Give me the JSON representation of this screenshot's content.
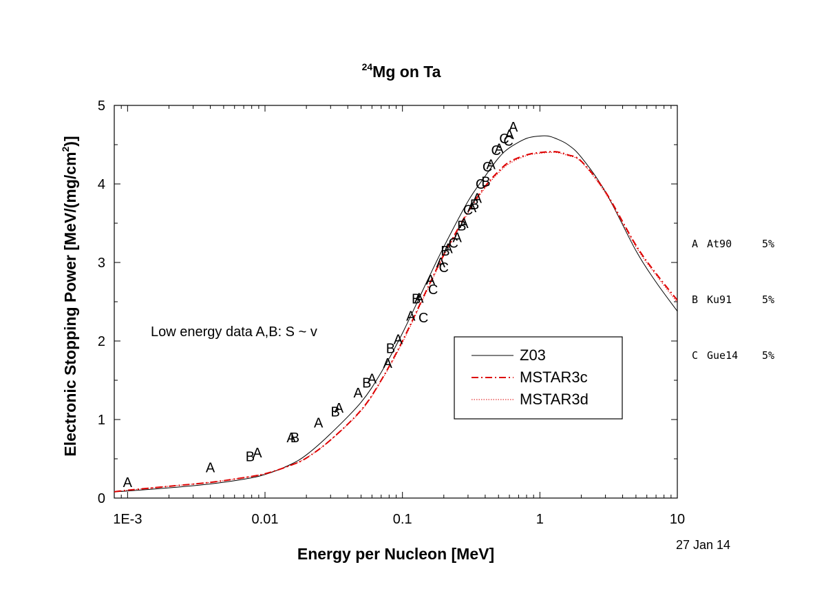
{
  "chart_data": {
    "type": "scatter",
    "title": "Mg on Ta",
    "title_superscript": "24",
    "xlabel": "Energy per Nucleon [MeV]",
    "ylabel": "Electronic Stopping Power [MeV/(mg/cm",
    "ylabel_superscript": "2",
    "ylabel_suffix": ")]",
    "x_scale": "log",
    "xlim": [
      0.0008,
      10
    ],
    "ylim": [
      0,
      5
    ],
    "x_ticks": [
      0.001,
      0.01,
      0.1,
      1,
      10
    ],
    "x_tick_labels": [
      "1E-3",
      "0.01",
      "0.1",
      "1",
      "10"
    ],
    "y_ticks": [
      0,
      1,
      2,
      3,
      4,
      5
    ],
    "y_tick_labels": [
      "0",
      "1",
      "2",
      "3",
      "4",
      "5"
    ],
    "grid": false,
    "annotation": "Low energy data A,B: S ~ v",
    "date_label": "27 Jan 14",
    "legend": {
      "placement": "lower-right",
      "entries": [
        {
          "label": "Z03",
          "color": "#000000",
          "style": "solid"
        },
        {
          "label": "MSTAR3c",
          "color": "#dd0000",
          "style": "dashdot"
        },
        {
          "label": "MSTAR3d",
          "color": "#dd0000",
          "style": "dotted"
        }
      ]
    },
    "data_legend": [
      {
        "code": "A",
        "source": "At90",
        "error": "5%"
      },
      {
        "code": "B",
        "source": "Ku91",
        "error": "5%"
      },
      {
        "code": "C",
        "source": "Gue14",
        "error": "5%"
      }
    ],
    "series": [
      {
        "name": "Z03",
        "color": "#000000",
        "style": "solid",
        "x": [
          0.0008,
          0.001,
          0.002,
          0.004,
          0.007,
          0.01,
          0.015,
          0.02,
          0.03,
          0.05,
          0.07,
          0.1,
          0.15,
          0.2,
          0.3,
          0.4,
          0.5,
          0.6,
          0.8,
          1.0,
          1.15,
          1.3,
          1.6,
          2,
          3,
          5,
          7,
          10
        ],
        "y": [
          0.08,
          0.09,
          0.13,
          0.18,
          0.24,
          0.3,
          0.42,
          0.55,
          0.82,
          1.22,
          1.6,
          2.1,
          2.75,
          3.2,
          3.78,
          4.1,
          4.33,
          4.46,
          4.58,
          4.61,
          4.61,
          4.58,
          4.5,
          4.34,
          3.9,
          3.15,
          2.75,
          2.38
        ]
      },
      {
        "name": "MSTAR3c",
        "color": "#dd0000",
        "style": "dashdot",
        "x": [
          0.0008,
          0.001,
          0.002,
          0.004,
          0.007,
          0.01,
          0.015,
          0.02,
          0.03,
          0.05,
          0.07,
          0.1,
          0.15,
          0.2,
          0.3,
          0.4,
          0.5,
          0.6,
          0.8,
          1.0,
          1.3,
          1.6,
          2,
          3,
          5,
          7,
          10
        ],
        "y": [
          0.08,
          0.1,
          0.15,
          0.2,
          0.26,
          0.31,
          0.41,
          0.51,
          0.74,
          1.12,
          1.5,
          2.0,
          2.65,
          3.1,
          3.65,
          3.97,
          4.16,
          4.28,
          4.37,
          4.4,
          4.41,
          4.37,
          4.29,
          3.9,
          3.22,
          2.86,
          2.52
        ]
      },
      {
        "name": "MSTAR3d",
        "color": "#dd0000",
        "style": "dotted",
        "x": [
          0.0008,
          0.001,
          0.002,
          0.004,
          0.007,
          0.01,
          0.015,
          0.02,
          0.03,
          0.05,
          0.07,
          0.1,
          0.15,
          0.2,
          0.3,
          0.4,
          0.5,
          0.6,
          0.8,
          1.0,
          1.3,
          1.6,
          2,
          3,
          5,
          7,
          10
        ],
        "y": [
          0.08,
          0.1,
          0.15,
          0.2,
          0.26,
          0.31,
          0.41,
          0.51,
          0.74,
          1.11,
          1.49,
          1.98,
          2.63,
          3.08,
          3.63,
          3.95,
          4.14,
          4.26,
          4.36,
          4.39,
          4.4,
          4.36,
          4.28,
          3.88,
          3.2,
          2.84,
          2.49
        ]
      }
    ],
    "points": [
      {
        "label": "A",
        "x": 0.001,
        "y": 0.2
      },
      {
        "label": "A",
        "x": 0.004,
        "y": 0.39
      },
      {
        "label": "B",
        "x": 0.0078,
        "y": 0.53
      },
      {
        "label": "A",
        "x": 0.0088,
        "y": 0.58
      },
      {
        "label": "A",
        "x": 0.0155,
        "y": 0.77
      },
      {
        "label": "B",
        "x": 0.0165,
        "y": 0.77
      },
      {
        "label": "A",
        "x": 0.0245,
        "y": 0.96
      },
      {
        "label": "B",
        "x": 0.0325,
        "y": 1.1
      },
      {
        "label": "A",
        "x": 0.0345,
        "y": 1.15
      },
      {
        "label": "A",
        "x": 0.0475,
        "y": 1.34
      },
      {
        "label": "B",
        "x": 0.055,
        "y": 1.47
      },
      {
        "label": "A",
        "x": 0.06,
        "y": 1.52
      },
      {
        "label": "A",
        "x": 0.078,
        "y": 1.72
      },
      {
        "label": "B",
        "x": 0.082,
        "y": 1.91
      },
      {
        "label": "A",
        "x": 0.093,
        "y": 2.02
      },
      {
        "label": "A",
        "x": 0.115,
        "y": 2.32
      },
      {
        "label": "B",
        "x": 0.126,
        "y": 2.54
      },
      {
        "label": "A",
        "x": 0.132,
        "y": 2.55
      },
      {
        "label": "C",
        "x": 0.142,
        "y": 2.3
      },
      {
        "label": "A",
        "x": 0.16,
        "y": 2.78
      },
      {
        "label": "C",
        "x": 0.167,
        "y": 2.66
      },
      {
        "label": "A",
        "x": 0.19,
        "y": 3.0
      },
      {
        "label": "C",
        "x": 0.2,
        "y": 2.94
      },
      {
        "label": "B",
        "x": 0.205,
        "y": 3.15
      },
      {
        "label": "A",
        "x": 0.215,
        "y": 3.18
      },
      {
        "label": "C",
        "x": 0.235,
        "y": 3.25
      },
      {
        "label": "A",
        "x": 0.25,
        "y": 3.32
      },
      {
        "label": "B",
        "x": 0.27,
        "y": 3.47
      },
      {
        "label": "A",
        "x": 0.28,
        "y": 3.5
      },
      {
        "label": "C",
        "x": 0.3,
        "y": 3.67
      },
      {
        "label": "A",
        "x": 0.32,
        "y": 3.7
      },
      {
        "label": "B",
        "x": 0.335,
        "y": 3.74
      },
      {
        "label": "A",
        "x": 0.35,
        "y": 3.82
      },
      {
        "label": "C",
        "x": 0.37,
        "y": 4.0
      },
      {
        "label": "B",
        "x": 0.405,
        "y": 4.03
      },
      {
        "label": "C",
        "x": 0.415,
        "y": 4.22
      },
      {
        "label": "A",
        "x": 0.44,
        "y": 4.25
      },
      {
        "label": "C",
        "x": 0.48,
        "y": 4.43
      },
      {
        "label": "A",
        "x": 0.505,
        "y": 4.45
      },
      {
        "label": "C",
        "x": 0.55,
        "y": 4.58
      },
      {
        "label": "C",
        "x": 0.59,
        "y": 4.55
      },
      {
        "label": "A",
        "x": 0.6,
        "y": 4.63
      },
      {
        "label": "A",
        "x": 0.64,
        "y": 4.73
      }
    ]
  }
}
